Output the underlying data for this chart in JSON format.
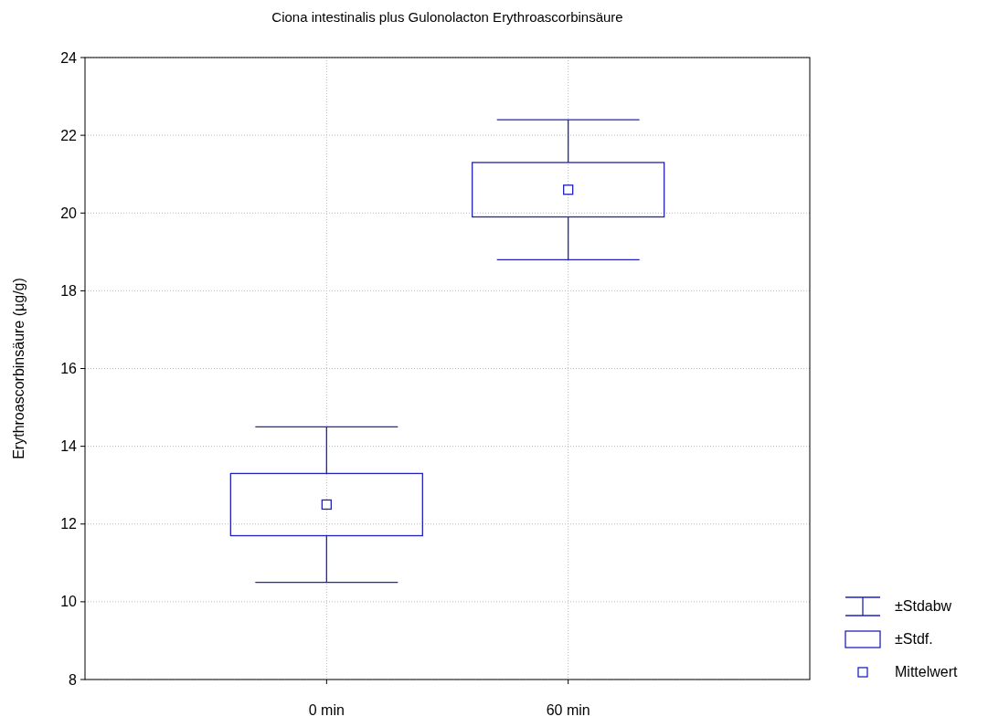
{
  "chart_data": {
    "type": "box",
    "title": "Ciona intestinalis plus Gulonolacton Erythroascorbinsäure",
    "ylabel": "Erythroascorbinsäure (µg/g)",
    "categories": [
      "0 min",
      "60 min"
    ],
    "series": [
      {
        "color": "#2222bb",
        "boxes": [
          {
            "low": 10.5,
            "q1": 11.7,
            "q3": 13.3,
            "high": 14.5,
            "mean": 12.5
          },
          {
            "low": 18.8,
            "q1": 19.9,
            "q3": 21.3,
            "high": 22.4,
            "mean": 20.6
          }
        ]
      }
    ],
    "ylim": [
      8,
      24
    ],
    "yticks": [
      8,
      10,
      12,
      14,
      16,
      18,
      20,
      22,
      24
    ],
    "grid": true,
    "annotations": [
      "±Stdabw",
      "±Stdf.",
      "Mittelwert"
    ]
  }
}
